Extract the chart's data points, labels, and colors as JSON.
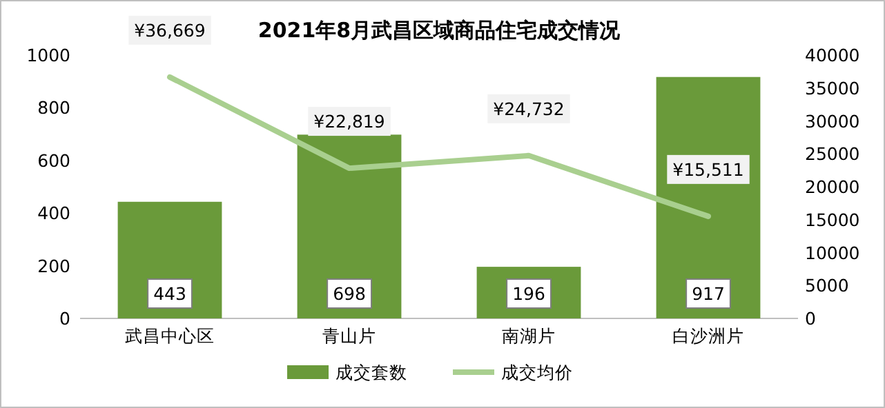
{
  "chart_data": {
    "type": "bar",
    "title": "2021年8月武昌区域商品住宅成交情况",
    "categories": [
      "武昌中心区",
      "青山片",
      "南湖片",
      "白沙洲片"
    ],
    "series": [
      {
        "name": "成交套数",
        "color": "#6a9a3a",
        "values": [
          443,
          698,
          196,
          917
        ],
        "value_labels": [
          "443",
          "698",
          "196",
          "917"
        ]
      },
      {
        "name": "成交均价",
        "type": "line",
        "axis": "y2",
        "color": "#a9cf8f",
        "values": [
          36669,
          22819,
          24732,
          15511
        ],
        "value_labels": [
          "¥36,669",
          "¥22,819",
          "¥24,732",
          "¥15,511"
        ]
      }
    ],
    "ylim": [
      0,
      1000
    ],
    "yticks": [
      0,
      200,
      400,
      600,
      800,
      1000
    ],
    "y2lim": [
      0,
      40000
    ],
    "y2ticks": [
      0,
      5000,
      10000,
      15000,
      20000,
      25000,
      30000,
      35000,
      40000
    ],
    "legend": "bottom"
  }
}
